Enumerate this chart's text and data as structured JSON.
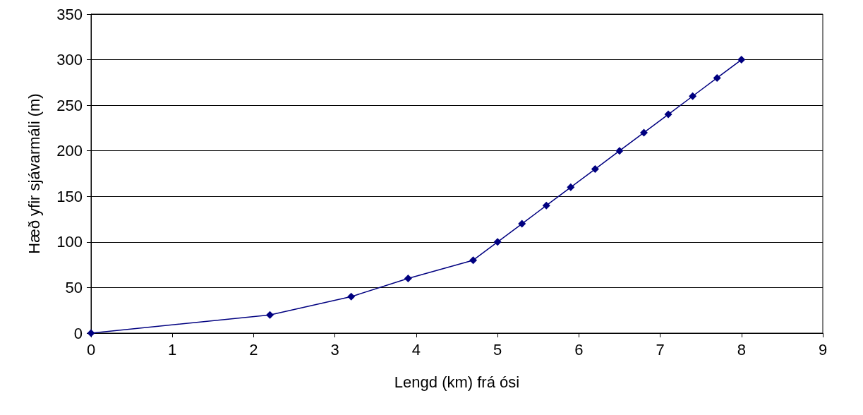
{
  "chart_data": {
    "type": "line",
    "xlabel": "Lengd (km) frá ósi",
    "ylabel": "Hæð yfir sjávarmáli (m)",
    "x": [
      0,
      2.2,
      3.2,
      3.9,
      4.7,
      5.0,
      5.3,
      5.6,
      5.9,
      6.2,
      6.5,
      6.8,
      7.1,
      7.4,
      7.7,
      8.0
    ],
    "series": [
      {
        "color": "#000080",
        "values": [
          0,
          20,
          40,
          60,
          80,
          100,
          120,
          140,
          160,
          180,
          200,
          220,
          240,
          260,
          280,
          300
        ]
      }
    ],
    "xlim": [
      0,
      9
    ],
    "xticks": [
      0,
      1,
      2,
      3,
      4,
      5,
      6,
      7,
      8,
      9
    ],
    "ylim": [
      0,
      350
    ],
    "yticks": [
      0,
      50,
      100,
      150,
      200,
      250,
      300,
      350
    ],
    "grid": "y",
    "marker": "diamond",
    "line_style": "solid"
  }
}
